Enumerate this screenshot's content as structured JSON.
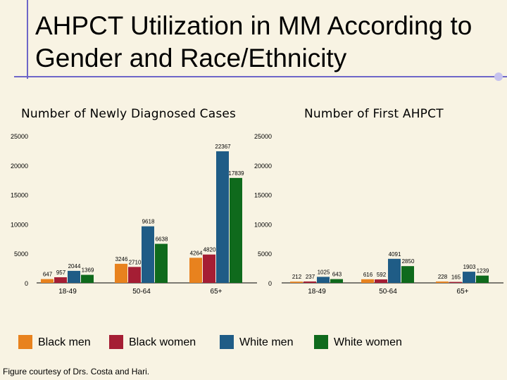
{
  "slide": {
    "title": "AHPCT Utilization in MM According to Gender and Race/Ethnicity",
    "credit": "Figure courtesy of Drs. Costa and Hari."
  },
  "colors": {
    "black_men": "#e8821e",
    "black_women": "#a51e34",
    "white_men": "#1f5c86",
    "white_women": "#0f6a1c",
    "accent": "#6e66c8"
  },
  "legend": [
    {
      "label": "Black men",
      "color": "#e8821e"
    },
    {
      "label": "Black women",
      "color": "#a51e34"
    },
    {
      "label": "White men",
      "color": "#1f5c86"
    },
    {
      "label": "White women",
      "color": "#0f6a1c"
    }
  ],
  "chart_data": [
    {
      "type": "bar",
      "title": "Number of Newly Diagnosed Cases",
      "categories": [
        "18-49",
        "50-64",
        "65+"
      ],
      "ylim": [
        0,
        25000
      ],
      "yticks": [
        "0",
        "5000",
        "10000",
        "15000",
        "20000",
        "25000"
      ],
      "series": [
        {
          "name": "Black men",
          "values": [
            647,
            3246,
            4264
          ],
          "labels": [
            "647",
            "3246",
            "4264"
          ]
        },
        {
          "name": "Black women",
          "values": [
            957,
            2710,
            4820
          ],
          "labels": [
            "957",
            "2710",
            "4820"
          ]
        },
        {
          "name": "White men",
          "values": [
            2044,
            9618,
            22367
          ],
          "labels": [
            "2044",
            "9618",
            "22367"
          ]
        },
        {
          "name": "White women",
          "values": [
            1369,
            6638,
            17839
          ],
          "labels": [
            "1369",
            "6638",
            "17839"
          ]
        }
      ]
    },
    {
      "type": "bar",
      "title": "Number of First AHPCT",
      "categories": [
        "18-49",
        "50-64",
        "65+"
      ],
      "ylim": [
        0,
        25000
      ],
      "yticks": [
        "0",
        "5000",
        "10000",
        "15000",
        "20000",
        "25000"
      ],
      "series": [
        {
          "name": "Black men",
          "values": [
            212,
            616,
            228
          ],
          "labels": [
            "212",
            "616",
            "228"
          ]
        },
        {
          "name": "Black women",
          "values": [
            237,
            592,
            165
          ],
          "labels": [
            "237",
            "592",
            "165"
          ]
        },
        {
          "name": "White men",
          "values": [
            1025,
            4091,
            1903
          ],
          "labels": [
            "1025",
            "4091",
            "1903"
          ]
        },
        {
          "name": "White women",
          "values": [
            643,
            2850,
            1239
          ],
          "labels": [
            "643",
            "2850",
            "1239"
          ]
        }
      ]
    }
  ]
}
